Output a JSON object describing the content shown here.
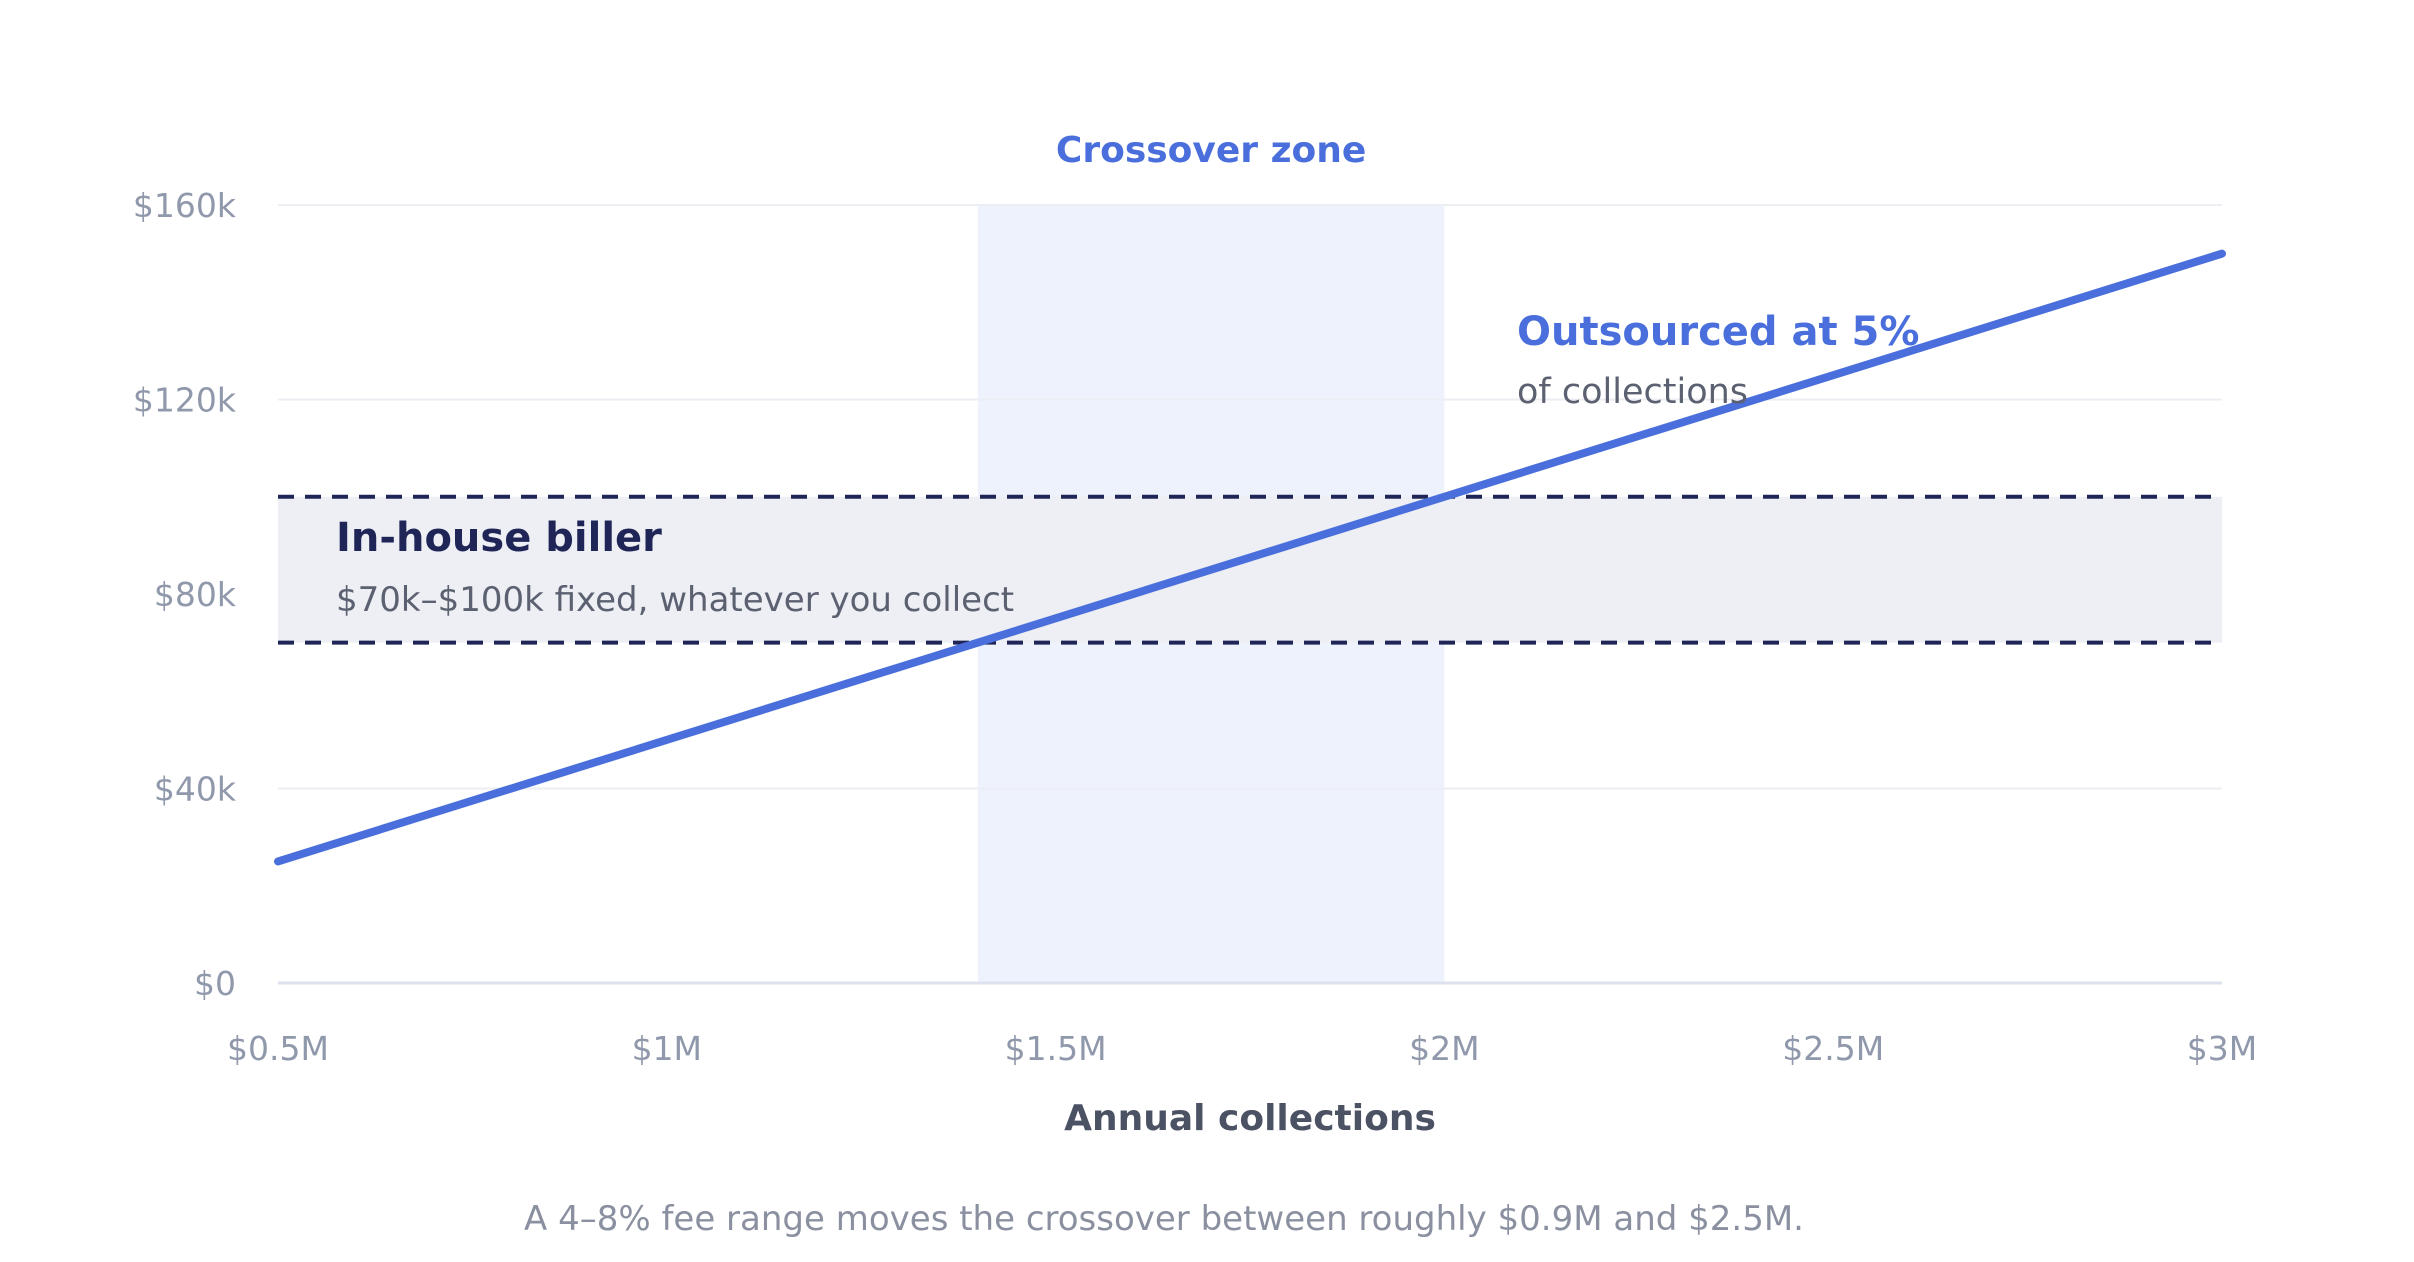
{
  "chart_data": {
    "type": "line",
    "xlabel": "Annual collections",
    "xlim": [
      0.5,
      3.0
    ],
    "ylim": [
      0,
      160000
    ],
    "grid": true,
    "x_ticks": [
      {
        "value": 0.5,
        "label": "$0.5M"
      },
      {
        "value": 1.0,
        "label": "$1M"
      },
      {
        "value": 1.5,
        "label": "$1.5M"
      },
      {
        "value": 2.0,
        "label": "$2M"
      },
      {
        "value": 2.5,
        "label": "$2.5M"
      },
      {
        "value": 3.0,
        "label": "$3M"
      }
    ],
    "y_ticks": [
      {
        "value": 0,
        "label": "$0"
      },
      {
        "value": 40000,
        "label": "$40k"
      },
      {
        "value": 80000,
        "label": "$80k"
      },
      {
        "value": 120000,
        "label": "$120k"
      },
      {
        "value": 160000,
        "label": "$160k"
      }
    ],
    "series": [
      {
        "name": "Outsourced at 5%",
        "subtitle": "of collections",
        "color": "#4a6fdc",
        "x": [
          0.5,
          3.0
        ],
        "y": [
          25000,
          150000
        ]
      }
    ],
    "band": {
      "title": "In-house biller",
      "subtitle": "$70k–$100k fixed, whatever you collect",
      "y_low": 70000,
      "y_high": 100000,
      "fill": "#eeeff4",
      "line_color": "#1f2657"
    },
    "zone": {
      "label": "Crossover zone",
      "x_start": 1.4,
      "x_end": 2.0,
      "fill": "#edf2fc"
    },
    "caption": "A 4–8% fee range moves the crossover between roughly $0.9M and $2.5M."
  }
}
